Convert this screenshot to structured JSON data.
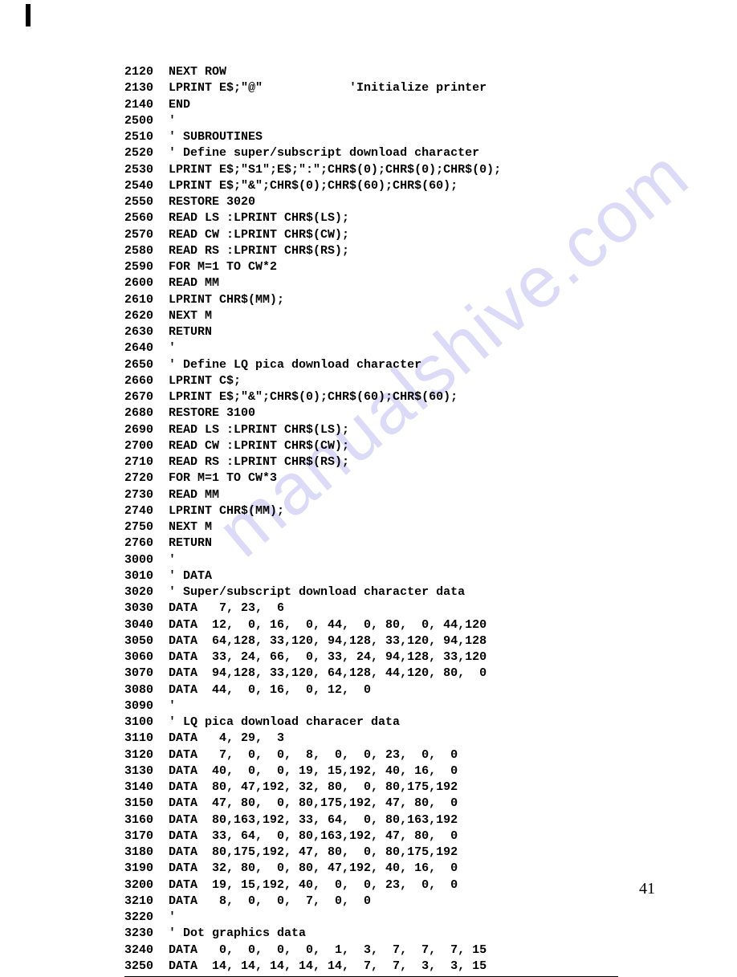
{
  "watermark_text": "manualshive.com",
  "page_number": "41",
  "code_lines": [
    {
      "num": "2120",
      "text": "NEXT ROW"
    },
    {
      "num": "2130",
      "text": "LPRINT E$;\"@\"            'Initialize printer"
    },
    {
      "num": "2140",
      "text": "END"
    },
    {
      "num": "2500",
      "text": "'"
    },
    {
      "num": "2510",
      "text": "' SUBROUTINES"
    },
    {
      "num": "2520",
      "text": "' Define super/subscript download character"
    },
    {
      "num": "2530",
      "text": "LPRINT E$;\"S1\";E$;\":\";CHR$(0);CHR$(0);CHR$(0);"
    },
    {
      "num": "2540",
      "text": "LPRINT E$;\"&\";CHR$(0);CHR$(60);CHR$(60);"
    },
    {
      "num": "2550",
      "text": "RESTORE 3020"
    },
    {
      "num": "2560",
      "text": "READ LS :LPRINT CHR$(LS);"
    },
    {
      "num": "2570",
      "text": "READ CW :LPRINT CHR$(CW);"
    },
    {
      "num": "2580",
      "text": "READ RS :LPRINT CHR$(RS);"
    },
    {
      "num": "2590",
      "text": "FOR M=1 TO CW*2"
    },
    {
      "num": "2600",
      "text": "READ MM"
    },
    {
      "num": "2610",
      "text": "LPRINT CHR$(MM);"
    },
    {
      "num": "2620",
      "text": "NEXT M"
    },
    {
      "num": "2630",
      "text": "RETURN"
    },
    {
      "num": "2640",
      "text": "'"
    },
    {
      "num": "2650",
      "text": "' Define LQ pica download character"
    },
    {
      "num": "2660",
      "text": "LPRINT C$;"
    },
    {
      "num": "2670",
      "text": "LPRINT E$;\"&\";CHR$(0);CHR$(60);CHR$(60);"
    },
    {
      "num": "2680",
      "text": "RESTORE 3100"
    },
    {
      "num": "2690",
      "text": "READ LS :LPRINT CHR$(LS);"
    },
    {
      "num": "2700",
      "text": "READ CW :LPRINT CHR$(CW);"
    },
    {
      "num": "2710",
      "text": "READ RS :LPRINT CHR$(RS);"
    },
    {
      "num": "2720",
      "text": "FOR M=1 TO CW*3"
    },
    {
      "num": "2730",
      "text": "READ MM"
    },
    {
      "num": "2740",
      "text": "LPRINT CHR$(MM);"
    },
    {
      "num": "2750",
      "text": "NEXT M"
    },
    {
      "num": "2760",
      "text": "RETURN"
    },
    {
      "num": "3000",
      "text": "'"
    },
    {
      "num": "3010",
      "text": "' DATA"
    },
    {
      "num": "3020",
      "text": "' Super/subscript download character data"
    },
    {
      "num": "3030",
      "text": "DATA   7, 23,  6"
    },
    {
      "num": "3040",
      "text": "DATA  12,  0, 16,  0, 44,  0, 80,  0, 44,120"
    },
    {
      "num": "3050",
      "text": "DATA  64,128, 33,120, 94,128, 33,120, 94,128"
    },
    {
      "num": "3060",
      "text": "DATA  33, 24, 66,  0, 33, 24, 94,128, 33,120"
    },
    {
      "num": "3070",
      "text": "DATA  94,128, 33,120, 64,128, 44,120, 80,  0"
    },
    {
      "num": "3080",
      "text": "DATA  44,  0, 16,  0, 12,  0"
    },
    {
      "num": "3090",
      "text": "'"
    },
    {
      "num": "3100",
      "text": "' LQ pica download characer data"
    },
    {
      "num": "3110",
      "text": "DATA   4, 29,  3"
    },
    {
      "num": "3120",
      "text": "DATA   7,  0,  0,  8,  0,  0, 23,  0,  0"
    },
    {
      "num": "3130",
      "text": "DATA  40,  0,  0, 19, 15,192, 40, 16,  0"
    },
    {
      "num": "3140",
      "text": "DATA  80, 47,192, 32, 80,  0, 80,175,192"
    },
    {
      "num": "3150",
      "text": "DATA  47, 80,  0, 80,175,192, 47, 80,  0"
    },
    {
      "num": "3160",
      "text": "DATA  80,163,192, 33, 64,  0, 80,163,192"
    },
    {
      "num": "3170",
      "text": "DATA  33, 64,  0, 80,163,192, 47, 80,  0"
    },
    {
      "num": "3180",
      "text": "DATA  80,175,192, 47, 80,  0, 80,175,192"
    },
    {
      "num": "3190",
      "text": "DATA  32, 80,  0, 80, 47,192, 40, 16,  0"
    },
    {
      "num": "3200",
      "text": "DATA  19, 15,192, 40,  0,  0, 23,  0,  0"
    },
    {
      "num": "3210",
      "text": "DATA   8,  0,  0,  7,  0,  0"
    },
    {
      "num": "3220",
      "text": "'"
    },
    {
      "num": "3230",
      "text": "' Dot graphics data"
    },
    {
      "num": "3240",
      "text": "DATA   0,  0,  0,  0,  1,  3,  7,  7,  7, 15"
    },
    {
      "num": "3250",
      "text": "DATA  14, 14, 14, 14, 14,  7,  7,  3,  3, 15"
    }
  ]
}
